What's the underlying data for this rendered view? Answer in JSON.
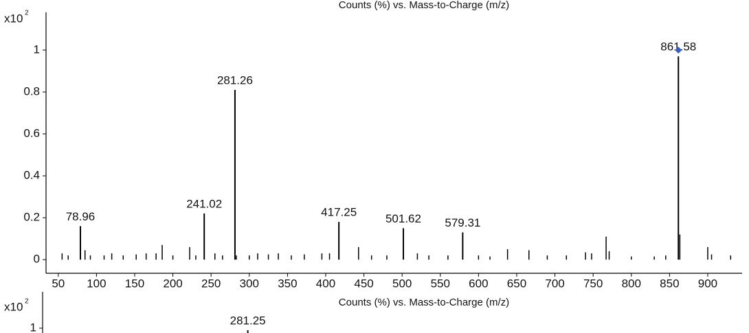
{
  "chart_data": [
    {
      "type": "spectrum",
      "title": "Counts (%) vs. Mass-to-Charge (m/z)",
      "y_multiplier": {
        "base": "x10",
        "exponent": "2"
      },
      "x": [
        78.96,
        241.02,
        281.26,
        417.25,
        501.62,
        579.31,
        861.58
      ],
      "values": [
        0.16,
        0.22,
        0.81,
        0.18,
        0.15,
        0.13,
        0.97
      ],
      "minor_x": [
        55,
        63,
        85,
        92,
        110,
        120,
        135,
        152,
        165,
        178,
        186,
        200,
        222,
        230,
        255,
        265,
        283,
        300,
        311,
        325,
        338,
        355,
        372,
        395,
        405,
        443,
        460,
        480,
        520,
        535,
        560,
        600,
        615,
        638,
        666,
        690,
        715,
        740,
        748,
        767,
        771,
        800,
        830,
        845,
        863.5,
        900,
        905,
        930
      ],
      "minor_values": [
        0.03,
        0.02,
        0.045,
        0.02,
        0.02,
        0.03,
        0.02,
        0.025,
        0.03,
        0.03,
        0.07,
        0.02,
        0.06,
        0.02,
        0.03,
        0.02,
        0.02,
        0.02,
        0.03,
        0.025,
        0.03,
        0.02,
        0.025,
        0.03,
        0.03,
        0.06,
        0.02,
        0.02,
        0.03,
        0.02,
        0.02,
        0.02,
        0.015,
        0.05,
        0.045,
        0.02,
        0.02,
        0.035,
        0.03,
        0.11,
        0.04,
        0.015,
        0.015,
        0.02,
        0.12,
        0.06,
        0.025,
        0.02
      ],
      "marker": {
        "x": 861.58,
        "y": 1.0,
        "color": "#3b5fc0"
      },
      "color": "#000000",
      "xlim": [
        34,
        945
      ],
      "ylim": [
        -0.065,
        1.18
      ],
      "xticks": [
        50,
        100,
        150,
        200,
        250,
        300,
        350,
        400,
        450,
        500,
        550,
        600,
        650,
        700,
        750,
        800,
        850,
        900
      ],
      "yticks": [
        0,
        0.2,
        0.4,
        0.6,
        0.8,
        1
      ]
    },
    {
      "type": "spectrum",
      "title": "Counts (%) vs. Mass-to-Charge (m/z)",
      "y_multiplier": {
        "base": "x10",
        "exponent": "2"
      },
      "x": [
        281.25
      ],
      "values": [
        0.99
      ],
      "color": "#000000",
      "xlim": [
        14,
        925
      ],
      "ylim": [
        -0.065,
        1.173
      ],
      "yticks": [
        1
      ]
    }
  ]
}
